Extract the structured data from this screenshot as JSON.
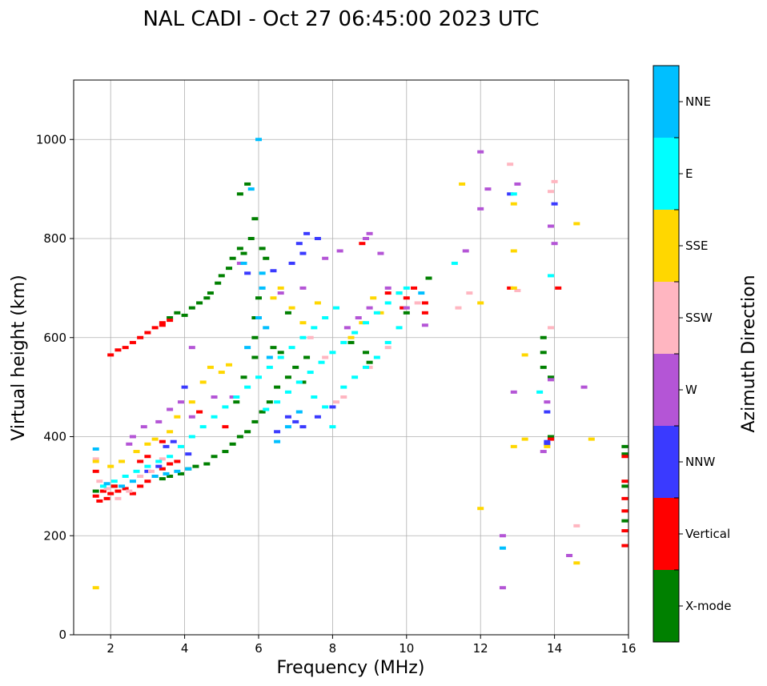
{
  "chart_data": {
    "type": "scatter",
    "title": "NAL CADI - Oct 27 06:45:00 2023 UTC",
    "xlabel": "Frequency (MHz)",
    "ylabel": "Virtual height (km)",
    "xlim": [
      1,
      16
    ],
    "ylim": [
      0,
      1120
    ],
    "xticks": [
      "2",
      "4",
      "6",
      "8",
      "10",
      "12",
      "14",
      "16"
    ],
    "yticks": [
      "0",
      "200",
      "400",
      "600",
      "800",
      "1000"
    ],
    "grid": true,
    "colorbar": {
      "label": "Azimuth Direction",
      "categories": [
        {
          "name": "X-mode",
          "color": "#008000"
        },
        {
          "name": "Vertical",
          "color": "#ff0000"
        },
        {
          "name": "NNW",
          "color": "#3a3aff"
        },
        {
          "name": "W",
          "color": "#b455d6"
        },
        {
          "name": "SSW",
          "color": "#ffb6c1"
        },
        {
          "name": "SSE",
          "color": "#ffd700"
        },
        {
          "name": "E",
          "color": "#00ffff"
        },
        {
          "name": "NNE",
          "color": "#00bfff"
        }
      ]
    },
    "series": [
      {
        "name": "X-mode",
        "points": [
          [
            3.6,
            640
          ],
          [
            3.8,
            650
          ],
          [
            4.0,
            645
          ],
          [
            4.2,
            660
          ],
          [
            4.4,
            670
          ],
          [
            4.6,
            680
          ],
          [
            4.7,
            690
          ],
          [
            4.9,
            710
          ],
          [
            5.0,
            725
          ],
          [
            5.2,
            740
          ],
          [
            5.3,
            760
          ],
          [
            5.5,
            780
          ],
          [
            5.6,
            770
          ],
          [
            5.8,
            800
          ],
          [
            5.9,
            840
          ],
          [
            5.5,
            890
          ],
          [
            5.7,
            910
          ],
          [
            3.4,
            315
          ],
          [
            3.6,
            320
          ],
          [
            3.9,
            325
          ],
          [
            4.1,
            335
          ],
          [
            4.3,
            340
          ],
          [
            4.6,
            345
          ],
          [
            4.8,
            360
          ],
          [
            5.1,
            370
          ],
          [
            5.3,
            385
          ],
          [
            5.5,
            400
          ],
          [
            5.7,
            410
          ],
          [
            5.9,
            430
          ],
          [
            6.1,
            450
          ],
          [
            6.3,
            470
          ],
          [
            6.5,
            500
          ],
          [
            6.8,
            520
          ],
          [
            7.0,
            540
          ],
          [
            7.3,
            560
          ],
          [
            5.9,
            640
          ],
          [
            5.9,
            600
          ],
          [
            5.9,
            560
          ],
          [
            6.0,
            680
          ],
          [
            5.4,
            470
          ],
          [
            5.6,
            520
          ],
          [
            6.4,
            580
          ],
          [
            6.6,
            570
          ],
          [
            7.2,
            510
          ],
          [
            6.8,
            650
          ],
          [
            6.1,
            780
          ],
          [
            6.2,
            760
          ],
          [
            13.7,
            600
          ],
          [
            13.7,
            570
          ],
          [
            13.7,
            540
          ],
          [
            13.9,
            520
          ],
          [
            13.9,
            400
          ],
          [
            15.9,
            380
          ],
          [
            15.9,
            365
          ],
          [
            15.9,
            300
          ],
          [
            15.9,
            230
          ],
          [
            9.8,
            690
          ],
          [
            10.0,
            650
          ],
          [
            10.6,
            720
          ],
          [
            8.5,
            590
          ],
          [
            8.9,
            570
          ],
          [
            9.0,
            550
          ],
          [
            1.6,
            290
          ],
          [
            2.1,
            300
          ]
        ]
      },
      {
        "name": "Vertical",
        "points": [
          [
            1.6,
            280
          ],
          [
            1.7,
            270
          ],
          [
            1.8,
            290
          ],
          [
            1.9,
            275
          ],
          [
            2.0,
            285
          ],
          [
            2.1,
            300
          ],
          [
            2.2,
            290
          ],
          [
            2.4,
            295
          ],
          [
            2.6,
            285
          ],
          [
            2.8,
            300
          ],
          [
            3.0,
            310
          ],
          [
            3.2,
            320
          ],
          [
            3.4,
            335
          ],
          [
            3.6,
            345
          ],
          [
            3.8,
            350
          ],
          [
            2.0,
            565
          ],
          [
            2.2,
            575
          ],
          [
            2.4,
            580
          ],
          [
            2.6,
            590
          ],
          [
            2.8,
            600
          ],
          [
            3.0,
            610
          ],
          [
            3.2,
            620
          ],
          [
            3.4,
            625
          ],
          [
            3.6,
            635
          ],
          [
            3.4,
            630
          ],
          [
            2.8,
            350
          ],
          [
            1.6,
            330
          ],
          [
            3.0,
            360
          ],
          [
            3.4,
            390
          ],
          [
            4.4,
            450
          ],
          [
            5.1,
            420
          ],
          [
            8.8,
            790
          ],
          [
            9.5,
            690
          ],
          [
            9.9,
            660
          ],
          [
            10.0,
            680
          ],
          [
            10.2,
            700
          ],
          [
            10.5,
            670
          ],
          [
            10.5,
            650
          ],
          [
            12.8,
            700
          ],
          [
            14.1,
            700
          ],
          [
            13.9,
            395
          ],
          [
            15.9,
            360
          ],
          [
            15.9,
            310
          ],
          [
            15.9,
            275
          ],
          [
            15.9,
            250
          ],
          [
            15.9,
            210
          ],
          [
            15.9,
            180
          ]
        ]
      },
      {
        "name": "NNW",
        "points": [
          [
            3.0,
            330
          ],
          [
            3.3,
            340
          ],
          [
            3.5,
            380
          ],
          [
            3.7,
            390
          ],
          [
            4.1,
            365
          ],
          [
            6.5,
            410
          ],
          [
            6.8,
            440
          ],
          [
            7.0,
            430
          ],
          [
            7.2,
            420
          ],
          [
            7.6,
            440
          ],
          [
            8.0,
            460
          ],
          [
            7.3,
            810
          ],
          [
            7.6,
            800
          ],
          [
            7.1,
            790
          ],
          [
            7.2,
            770
          ],
          [
            6.9,
            750
          ],
          [
            6.4,
            735
          ],
          [
            13.8,
            450
          ],
          [
            13.8,
            390
          ],
          [
            13.8,
            385
          ],
          [
            14.0,
            870
          ],
          [
            4.0,
            500
          ],
          [
            5.7,
            730
          ],
          [
            12.8,
            890
          ]
        ]
      },
      {
        "name": "W",
        "points": [
          [
            2.5,
            385
          ],
          [
            2.6,
            400
          ],
          [
            2.9,
            420
          ],
          [
            3.3,
            430
          ],
          [
            3.6,
            455
          ],
          [
            3.9,
            470
          ],
          [
            4.2,
            440
          ],
          [
            5.3,
            480
          ],
          [
            4.2,
            580
          ],
          [
            4.8,
            480
          ],
          [
            6.6,
            690
          ],
          [
            7.2,
            700
          ],
          [
            7.8,
            760
          ],
          [
            8.2,
            775
          ],
          [
            8.9,
            800
          ],
          [
            9.0,
            810
          ],
          [
            9.3,
            770
          ],
          [
            8.4,
            620
          ],
          [
            8.7,
            640
          ],
          [
            9.0,
            660
          ],
          [
            9.5,
            700
          ],
          [
            10.0,
            660
          ],
          [
            10.5,
            625
          ],
          [
            12.0,
            975
          ],
          [
            12.0,
            860
          ],
          [
            12.2,
            900
          ],
          [
            12.6,
            200
          ],
          [
            12.6,
            95
          ],
          [
            12.9,
            490
          ],
          [
            13.0,
            910
          ],
          [
            13.7,
            370
          ],
          [
            13.8,
            470
          ],
          [
            13.9,
            515
          ],
          [
            13.9,
            825
          ],
          [
            14.0,
            790
          ],
          [
            14.4,
            160
          ],
          [
            14.8,
            500
          ],
          [
            11.6,
            775
          ],
          [
            5.5,
            750
          ]
        ]
      },
      {
        "name": "SSW",
        "points": [
          [
            1.6,
            355
          ],
          [
            1.7,
            310
          ],
          [
            1.9,
            295
          ],
          [
            2.2,
            275
          ],
          [
            2.5,
            290
          ],
          [
            2.8,
            320
          ],
          [
            3.1,
            330
          ],
          [
            3.4,
            355
          ],
          [
            7.4,
            600
          ],
          [
            7.8,
            560
          ],
          [
            8.3,
            480
          ],
          [
            8.1,
            470
          ],
          [
            9.0,
            540
          ],
          [
            9.5,
            580
          ],
          [
            10.3,
            670
          ],
          [
            11.4,
            660
          ],
          [
            11.7,
            690
          ],
          [
            12.8,
            950
          ],
          [
            13.0,
            695
          ],
          [
            13.9,
            620
          ],
          [
            13.9,
            895
          ],
          [
            14.0,
            915
          ],
          [
            14.6,
            220
          ]
        ]
      },
      {
        "name": "SSE",
        "points": [
          [
            1.6,
            95
          ],
          [
            1.6,
            350
          ],
          [
            2.0,
            340
          ],
          [
            2.3,
            350
          ],
          [
            2.7,
            370
          ],
          [
            3.0,
            385
          ],
          [
            3.2,
            395
          ],
          [
            3.6,
            410
          ],
          [
            3.8,
            440
          ],
          [
            4.2,
            470
          ],
          [
            4.5,
            510
          ],
          [
            4.7,
            540
          ],
          [
            5.0,
            530
          ],
          [
            5.2,
            545
          ],
          [
            6.4,
            680
          ],
          [
            6.6,
            700
          ],
          [
            6.9,
            660
          ],
          [
            7.2,
            630
          ],
          [
            7.6,
            670
          ],
          [
            8.5,
            600
          ],
          [
            8.8,
            630
          ],
          [
            9.1,
            680
          ],
          [
            9.3,
            650
          ],
          [
            11.5,
            910
          ],
          [
            12.0,
            255
          ],
          [
            12.0,
            670
          ],
          [
            12.9,
            870
          ],
          [
            12.9,
            775
          ],
          [
            12.9,
            700
          ],
          [
            12.9,
            380
          ],
          [
            13.2,
            395
          ],
          [
            13.2,
            565
          ],
          [
            13.8,
            380
          ],
          [
            14.6,
            830
          ],
          [
            14.6,
            145
          ],
          [
            15.0,
            395
          ]
        ]
      },
      {
        "name": "E",
        "points": [
          [
            1.8,
            300
          ],
          [
            2.1,
            310
          ],
          [
            2.4,
            320
          ],
          [
            2.7,
            330
          ],
          [
            3.0,
            340
          ],
          [
            3.3,
            350
          ],
          [
            3.6,
            360
          ],
          [
            3.9,
            380
          ],
          [
            4.2,
            400
          ],
          [
            4.5,
            420
          ],
          [
            4.8,
            440
          ],
          [
            5.1,
            460
          ],
          [
            5.4,
            480
          ],
          [
            5.7,
            500
          ],
          [
            6.0,
            520
          ],
          [
            6.3,
            540
          ],
          [
            6.6,
            560
          ],
          [
            6.9,
            580
          ],
          [
            7.2,
            600
          ],
          [
            7.5,
            620
          ],
          [
            7.8,
            640
          ],
          [
            8.1,
            660
          ],
          [
            6.2,
            455
          ],
          [
            6.5,
            470
          ],
          [
            6.8,
            490
          ],
          [
            7.1,
            510
          ],
          [
            7.4,
            530
          ],
          [
            7.7,
            550
          ],
          [
            8.0,
            570
          ],
          [
            8.3,
            590
          ],
          [
            8.6,
            610
          ],
          [
            8.9,
            630
          ],
          [
            9.2,
            650
          ],
          [
            9.5,
            670
          ],
          [
            9.8,
            690
          ],
          [
            10.0,
            700
          ],
          [
            8.3,
            500
          ],
          [
            8.6,
            520
          ],
          [
            8.9,
            540
          ],
          [
            9.2,
            560
          ],
          [
            9.5,
            590
          ],
          [
            9.8,
            620
          ],
          [
            7.5,
            480
          ],
          [
            7.8,
            460
          ],
          [
            8.0,
            420
          ],
          [
            11.3,
            750
          ],
          [
            12.9,
            890
          ],
          [
            13.6,
            490
          ],
          [
            13.9,
            725
          ]
        ]
      },
      {
        "name": "NNE",
        "points": [
          [
            1.6,
            375
          ],
          [
            1.9,
            305
          ],
          [
            2.3,
            300
          ],
          [
            2.6,
            310
          ],
          [
            3.2,
            320
          ],
          [
            3.5,
            325
          ],
          [
            3.8,
            330
          ],
          [
            4.1,
            335
          ],
          [
            5.7,
            580
          ],
          [
            6.0,
            640
          ],
          [
            6.2,
            620
          ],
          [
            6.5,
            390
          ],
          [
            6.8,
            420
          ],
          [
            7.1,
            450
          ],
          [
            6.1,
            730
          ],
          [
            6.1,
            700
          ],
          [
            6.3,
            560
          ],
          [
            5.6,
            750
          ],
          [
            5.8,
            900
          ],
          [
            6.0,
            1000
          ],
          [
            12.6,
            175
          ],
          [
            10.4,
            690
          ]
        ]
      }
    ]
  }
}
